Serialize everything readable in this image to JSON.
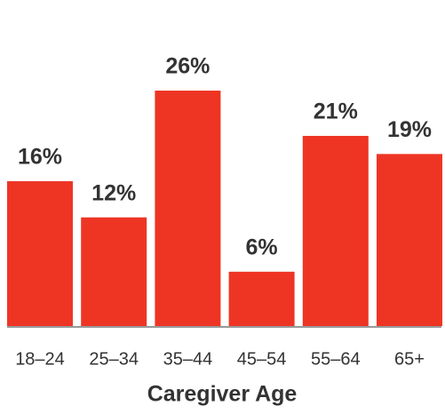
{
  "chart_data": {
    "type": "bar",
    "x_label": "Caregiver Age",
    "categories": [
      "18–24",
      "25–34",
      "35–44",
      "45–54",
      "55–64",
      "65+"
    ],
    "values": [
      16,
      12,
      26,
      6,
      21,
      19
    ],
    "value_labels": [
      "16%",
      "12%",
      "26%",
      "6%",
      "21%",
      "19%"
    ],
    "color": "#ee3524"
  }
}
